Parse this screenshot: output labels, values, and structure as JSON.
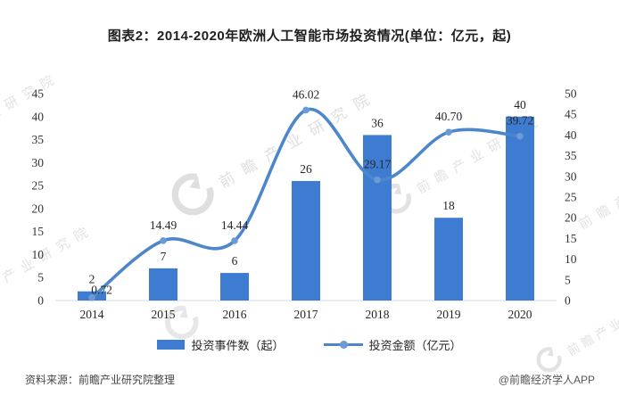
{
  "title": "图表2：2014-2020年欧洲人工智能市场投资情况(单位：亿元，起)",
  "chart_data": {
    "type": "combo bar+line",
    "categories": [
      "2014",
      "2015",
      "2016",
      "2017",
      "2018",
      "2019",
      "2020"
    ],
    "series": [
      {
        "name": "投资事件数（起）",
        "type": "bar",
        "axis": "left",
        "values": [
          2,
          7,
          6,
          26,
          36,
          18,
          40
        ],
        "labels": [
          "2",
          "7",
          "6",
          "26",
          "36",
          "18",
          "40"
        ]
      },
      {
        "name": "投资金额（亿元）",
        "type": "line",
        "axis": "right",
        "values": [
          0.72,
          14.49,
          14.44,
          46.02,
          29.17,
          40.7,
          39.72
        ],
        "labels": [
          "0.72",
          "14.49",
          "14.44",
          "46.02",
          "29.17",
          "40.70",
          "39.72"
        ]
      }
    ],
    "left_axis": {
      "min": 0,
      "max": 45,
      "step": 5,
      "ticks": [
        45,
        40,
        35,
        30,
        25,
        20,
        15,
        10,
        5,
        0
      ]
    },
    "right_axis": {
      "min": 0,
      "max": 50,
      "step": 5,
      "ticks": [
        50,
        45,
        40,
        35,
        30,
        25,
        20,
        15,
        10,
        5,
        0
      ]
    },
    "grid": false,
    "legend_position": "bottom"
  },
  "colors": {
    "bar": "#3E7CD1",
    "line": "#4E86CC",
    "marker": "#6B9AD6",
    "label_text": "#262626",
    "tick_text": "#333333",
    "baseline": "#D9D9D9"
  },
  "watermark": {
    "full": "前瞻产业研究院",
    "partial_top_left": "业研究院",
    "partial_mid_left": "产业研究院"
  },
  "footer": {
    "source": "资料来源：前瞻产业研究院整理",
    "credit": "@前瞻经济学人APP"
  }
}
